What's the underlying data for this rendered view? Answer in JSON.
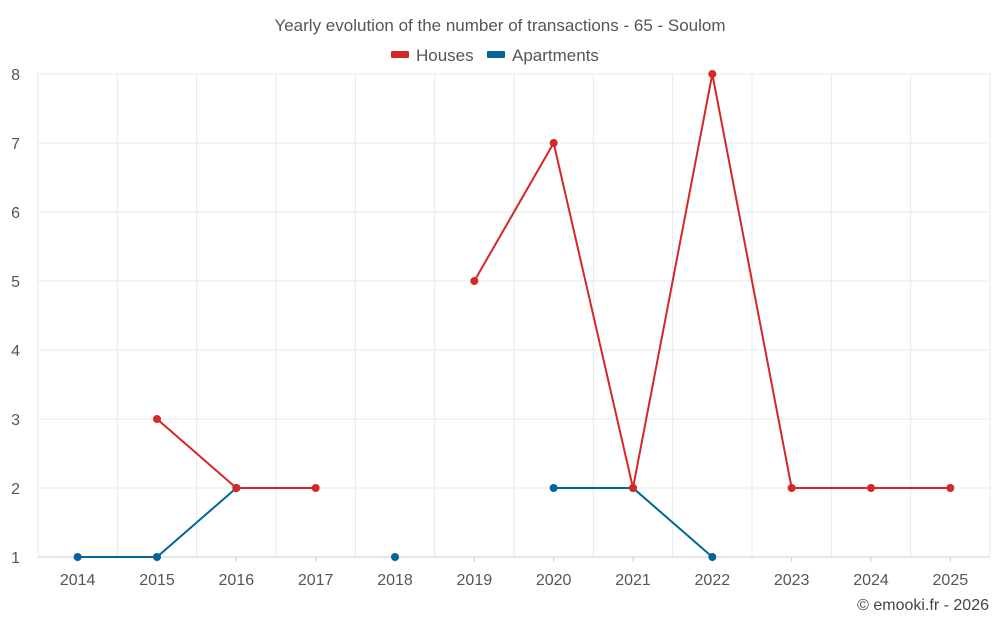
{
  "chart_data": {
    "type": "line",
    "title": "Yearly evolution of the number of transactions - 65 - Soulom",
    "xlabel": "",
    "ylabel": "",
    "categories": [
      "2014",
      "2015",
      "2016",
      "2017",
      "2018",
      "2019",
      "2020",
      "2021",
      "2022",
      "2023",
      "2024",
      "2025"
    ],
    "ylim": [
      1,
      8
    ],
    "yticks": [
      1,
      2,
      3,
      4,
      5,
      6,
      7,
      8
    ],
    "grid": true,
    "legend_position": "top-center",
    "series": [
      {
        "name": "Houses",
        "color": "#d62728",
        "values": [
          null,
          3,
          2,
          2,
          null,
          5,
          7,
          2,
          8,
          2,
          2,
          2
        ]
      },
      {
        "name": "Apartments",
        "color": "#006699",
        "values": [
          1,
          1,
          2,
          null,
          1,
          null,
          2,
          2,
          1,
          null,
          null,
          null
        ]
      }
    ]
  },
  "credit": "© emooki.fr - 2026"
}
